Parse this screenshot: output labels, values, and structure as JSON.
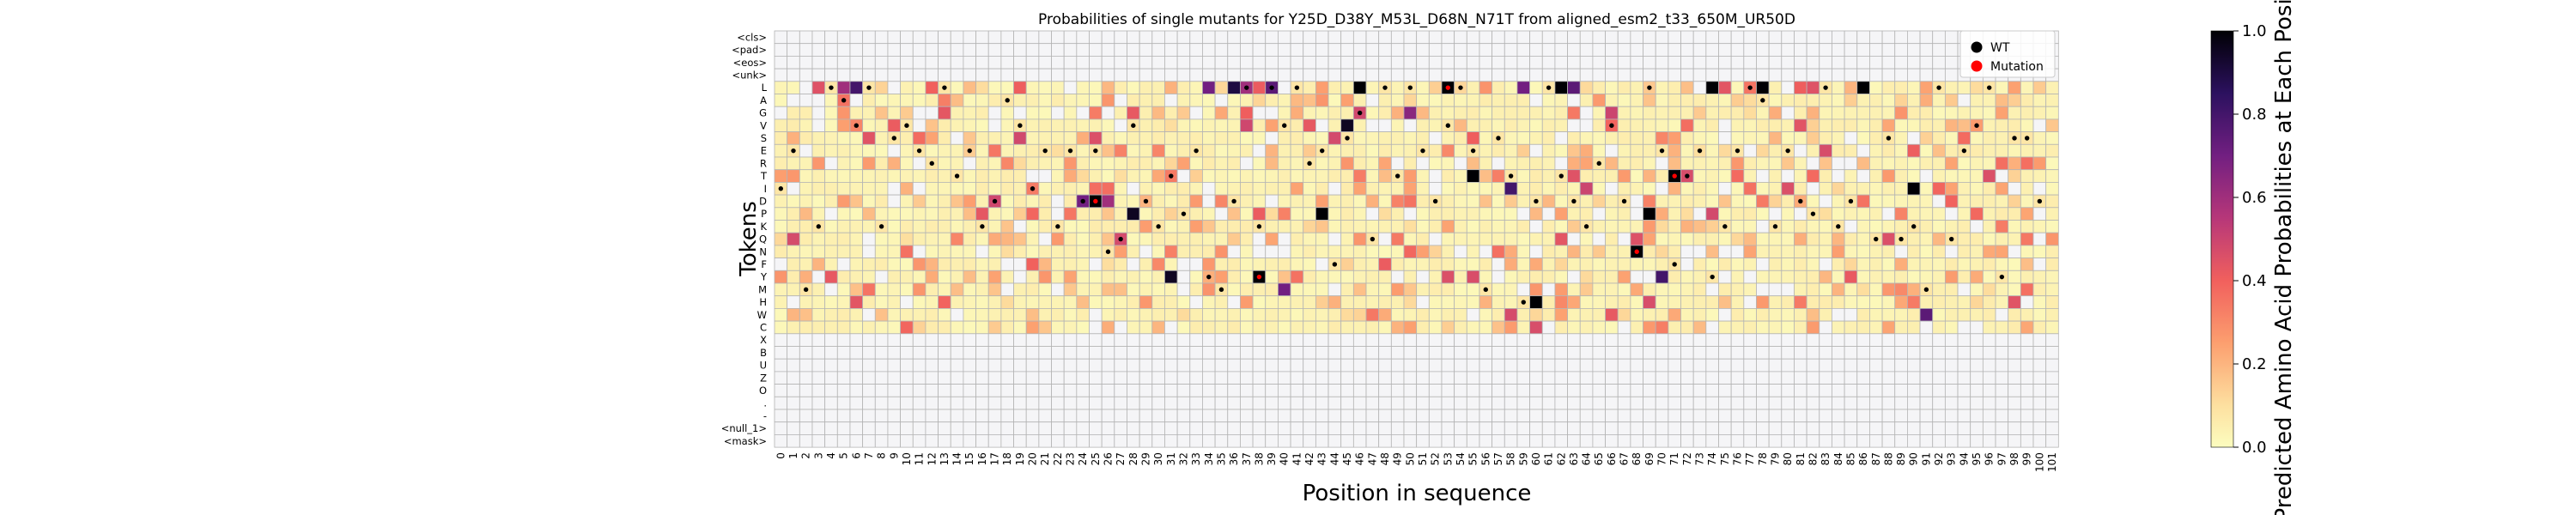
{
  "chart_data": {
    "type": "heatmap",
    "title": "Probabilities of single mutants for Y25D_D38Y_M53L_D68N_N71T from aligned_esm2_t33_650M_UR50D",
    "xlabel": "Position in sequence",
    "ylabel": "Tokens",
    "colorbar": {
      "label": "Predicted Amino Acid Probabilities at Each Position",
      "range": [
        0.0,
        1.0
      ],
      "ticks": [
        "0.0",
        "0.2",
        "0.4",
        "0.6",
        "0.8",
        "1.0"
      ],
      "colormap": "magma_r"
    },
    "legend": {
      "position": "top-right",
      "entries": [
        {
          "label": "WT",
          "color": "#000000"
        },
        {
          "label": "Mutation",
          "color": "#ff0000"
        }
      ]
    },
    "tokens": [
      "<cls>",
      "<pad>",
      "<eos>",
      "<unk>",
      "L",
      "A",
      "G",
      "V",
      "S",
      "E",
      "R",
      "T",
      "I",
      "D",
      "P",
      "K",
      "Q",
      "N",
      "F",
      "Y",
      "M",
      "H",
      "W",
      "C",
      "X",
      "B",
      "U",
      "Z",
      "O",
      ".",
      "-",
      "<null_1>",
      "<mask>"
    ],
    "positions_start": 0,
    "positions_end": 101,
    "probability_tokens": [
      "L",
      "A",
      "G",
      "V",
      "S",
      "E",
      "R",
      "T",
      "I",
      "D",
      "P",
      "K",
      "Q",
      "N",
      "F",
      "Y",
      "M",
      "H",
      "W",
      "C"
    ],
    "wt_sequence": "IEMKLAVLKSVERLTEKDAVIEKEDENQVDKTPEYMDLKLVLREFSGQLTLEDVLEMSTHDLTDKRVDNLEFTEYKELAKEDPLKDLQSQKMLQEVLYSSD",
    "mutations": [
      {
        "position": 25,
        "token": "D"
      },
      {
        "position": 38,
        "token": "Y"
      },
      {
        "position": 53,
        "token": "L"
      },
      {
        "position": 68,
        "token": "N"
      },
      {
        "position": 71,
        "token": "T"
      }
    ],
    "dominant_probabilities": [
      {
        "pos": 6,
        "token": "L",
        "p": 0.8
      },
      {
        "pos": 5,
        "token": "L",
        "p": 0.6
      },
      {
        "pos": 3,
        "token": "L",
        "p": 0.45
      },
      {
        "pos": 12,
        "token": "L",
        "p": 0.4
      },
      {
        "pos": 24,
        "token": "D",
        "p": 0.7
      },
      {
        "pos": 25,
        "token": "D",
        "p": 1.0
      },
      {
        "pos": 26,
        "token": "D",
        "p": 0.6
      },
      {
        "pos": 28,
        "token": "P",
        "p": 0.95
      },
      {
        "pos": 31,
        "token": "Y",
        "p": 0.95
      },
      {
        "pos": 34,
        "token": "L",
        "p": 0.7
      },
      {
        "pos": 36,
        "token": "L",
        "p": 0.9
      },
      {
        "pos": 37,
        "token": "L",
        "p": 0.6
      },
      {
        "pos": 38,
        "token": "Y",
        "p": 1.0
      },
      {
        "pos": 39,
        "token": "L",
        "p": 0.75
      },
      {
        "pos": 40,
        "token": "M",
        "p": 0.7
      },
      {
        "pos": 43,
        "token": "P",
        "p": 1.0
      },
      {
        "pos": 46,
        "token": "L",
        "p": 1.0
      },
      {
        "pos": 45,
        "token": "V",
        "p": 0.95
      },
      {
        "pos": 50,
        "token": "G",
        "p": 0.65
      },
      {
        "pos": 53,
        "token": "L",
        "p": 1.0
      },
      {
        "pos": 55,
        "token": "T",
        "p": 1.0
      },
      {
        "pos": 58,
        "token": "I",
        "p": 0.8
      },
      {
        "pos": 59,
        "token": "L",
        "p": 0.7
      },
      {
        "pos": 60,
        "token": "H",
        "p": 1.0
      },
      {
        "pos": 62,
        "token": "L",
        "p": 1.0
      },
      {
        "pos": 63,
        "token": "L",
        "p": 0.75
      },
      {
        "pos": 68,
        "token": "N",
        "p": 1.0
      },
      {
        "pos": 69,
        "token": "P",
        "p": 1.0
      },
      {
        "pos": 70,
        "token": "Y",
        "p": 0.8
      },
      {
        "pos": 71,
        "token": "T",
        "p": 1.0
      },
      {
        "pos": 74,
        "token": "L",
        "p": 1.0
      },
      {
        "pos": 78,
        "token": "L",
        "p": 1.0
      },
      {
        "pos": 86,
        "token": "L",
        "p": 1.0
      },
      {
        "pos": 90,
        "token": "I",
        "p": 1.0
      },
      {
        "pos": 91,
        "token": "W",
        "p": 0.75
      }
    ]
  }
}
